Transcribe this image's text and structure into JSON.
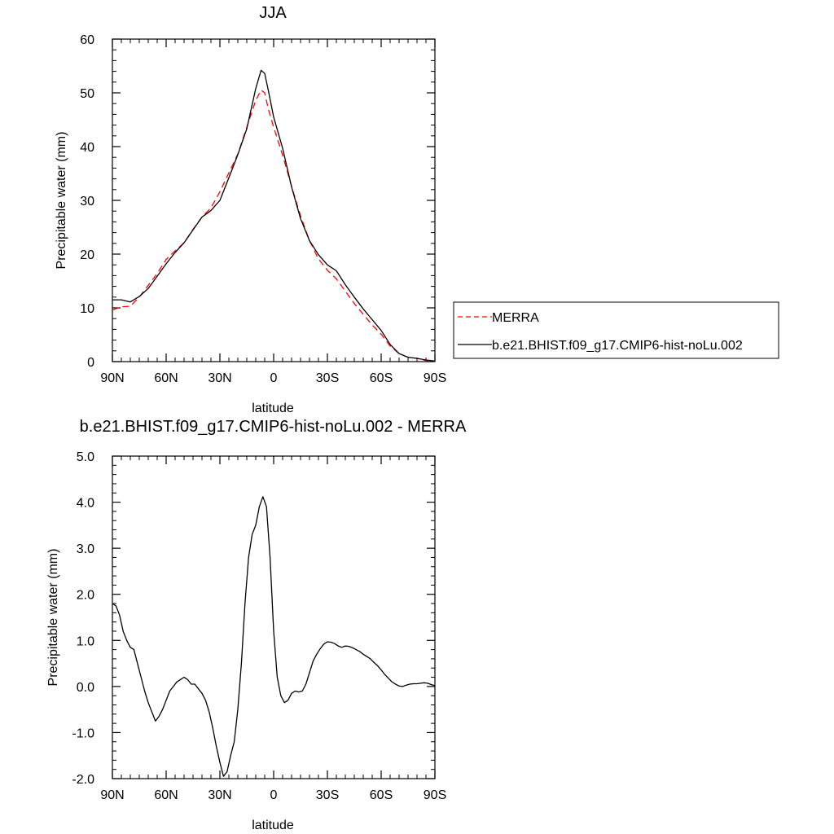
{
  "chart_data": [
    {
      "type": "line",
      "title": "JJA",
      "xlabel": "latitude",
      "ylabel": "Precipitable water (mm)",
      "xlim": [
        90,
        -90
      ],
      "ylim": [
        0,
        60
      ],
      "x_ticks": [
        90,
        60,
        30,
        0,
        -30,
        -60,
        -90
      ],
      "x_tick_labels": [
        "90N",
        "60N",
        "30N",
        "0",
        "30S",
        "60S",
        "90S"
      ],
      "y_ticks": [
        0,
        10,
        20,
        30,
        40,
        50,
        60
      ],
      "y_tick_labels": [
        "0",
        "10",
        "20",
        "30",
        "40",
        "50",
        "60"
      ],
      "legend_position": "right",
      "series": [
        {
          "name": "MERRA",
          "color": "#ff0000",
          "style": "dashed",
          "x": [
            90,
            85,
            80,
            75,
            70,
            65,
            60,
            55,
            50,
            45,
            40,
            35,
            30,
            25,
            20,
            15,
            10,
            7,
            5,
            3,
            0,
            -5,
            -10,
            -15,
            -20,
            -25,
            -30,
            -35,
            -40,
            -45,
            -50,
            -55,
            -60,
            -65,
            -70,
            -75,
            -80,
            -85,
            -90
          ],
          "y": [
            9.6,
            10.2,
            10.3,
            12.0,
            14.2,
            16.4,
            19.0,
            20.6,
            22.1,
            24.6,
            26.9,
            28.6,
            31.6,
            35.1,
            38.6,
            43.6,
            48.6,
            50.5,
            50.0,
            47.0,
            43.6,
            38.4,
            32.6,
            27.1,
            22.5,
            19.1,
            17.0,
            15.4,
            13.1,
            10.8,
            8.8,
            6.8,
            5.1,
            2.9,
            1.5,
            0.8,
            0.6,
            0.2,
            0.0
          ]
        },
        {
          "name": "b.e21.BHIST.f09_g17.CMIP6-hist-noLu.002",
          "color": "#000000",
          "style": "solid",
          "x": [
            90,
            85,
            80,
            75,
            70,
            65,
            60,
            55,
            50,
            45,
            40,
            35,
            30,
            25,
            20,
            15,
            10,
            7,
            5,
            3,
            0,
            -5,
            -10,
            -15,
            -20,
            -25,
            -30,
            -35,
            -40,
            -45,
            -50,
            -55,
            -60,
            -65,
            -70,
            -75,
            -80,
            -85,
            -90
          ],
          "y": [
            11.5,
            11.5,
            11.1,
            12.1,
            13.6,
            15.9,
            18.2,
            20.3,
            22.1,
            24.5,
            26.9,
            28.1,
            30.0,
            34.2,
            38.5,
            43.3,
            50.8,
            54.2,
            53.6,
            50.5,
            45.5,
            39.7,
            32.5,
            26.6,
            22.5,
            19.9,
            18.0,
            16.9,
            14.3,
            12.0,
            9.8,
            7.8,
            5.8,
            3.2,
            1.5,
            0.8,
            0.6,
            0.3,
            0.1
          ]
        }
      ]
    },
    {
      "type": "line",
      "title": "b.e21.BHIST.f09_g17.CMIP6-hist-noLu.002 - MERRA",
      "xlabel": "latitude",
      "ylabel": "Precipitable water (mm)",
      "xlim": [
        90,
        -90
      ],
      "ylim": [
        -2.0,
        5.0
      ],
      "x_ticks": [
        90,
        60,
        30,
        0,
        -30,
        -60,
        -90
      ],
      "x_tick_labels": [
        "90N",
        "60N",
        "30N",
        "0",
        "30S",
        "60S",
        "90S"
      ],
      "y_ticks": [
        -2.0,
        -1.0,
        0.0,
        1.0,
        2.0,
        3.0,
        4.0,
        5.0
      ],
      "y_tick_labels": [
        "-2.0",
        "-1.0",
        "0.0",
        "1.0",
        "2.0",
        "3.0",
        "4.0",
        "5.0"
      ],
      "series": [
        {
          "color": "#000000",
          "style": "solid",
          "x": [
            90,
            88,
            86,
            84,
            82,
            80,
            78,
            76,
            74,
            72,
            70,
            68,
            66,
            64,
            62,
            60,
            58,
            56,
            54,
            52,
            50,
            48,
            46,
            44,
            42,
            40,
            38,
            36,
            34,
            32,
            30,
            28,
            26,
            24,
            22,
            20,
            18,
            16,
            14,
            12,
            10,
            8,
            6,
            4,
            2,
            0,
            -2,
            -4,
            -6,
            -8,
            -10,
            -12,
            -14,
            -16,
            -18,
            -20,
            -22,
            -24,
            -26,
            -28,
            -30,
            -32,
            -34,
            -36,
            -38,
            -40,
            -42,
            -44,
            -46,
            -48,
            -50,
            -52,
            -54,
            -56,
            -58,
            -60,
            -62,
            -64,
            -66,
            -68,
            -70,
            -72,
            -74,
            -76,
            -78,
            -80,
            -82,
            -84,
            -86,
            -88,
            -90
          ],
          "y": [
            1.8,
            1.75,
            1.55,
            1.2,
            1.0,
            0.85,
            0.8,
            0.5,
            0.2,
            -0.1,
            -0.35,
            -0.55,
            -0.75,
            -0.65,
            -0.5,
            -0.3,
            -0.1,
            0.0,
            0.1,
            0.15,
            0.2,
            0.15,
            0.05,
            0.05,
            -0.05,
            -0.15,
            -0.3,
            -0.55,
            -0.9,
            -1.3,
            -1.65,
            -1.95,
            -1.85,
            -1.5,
            -1.2,
            -0.5,
            0.5,
            1.8,
            2.8,
            3.3,
            3.5,
            3.9,
            4.12,
            3.9,
            2.8,
            1.2,
            0.2,
            -0.2,
            -0.35,
            -0.3,
            -0.15,
            -0.1,
            -0.12,
            -0.1,
            0.05,
            0.3,
            0.55,
            0.7,
            0.82,
            0.92,
            0.97,
            0.96,
            0.93,
            0.88,
            0.85,
            0.88,
            0.87,
            0.84,
            0.8,
            0.76,
            0.7,
            0.65,
            0.6,
            0.52,
            0.45,
            0.36,
            0.26,
            0.18,
            0.1,
            0.05,
            0.01,
            0.0,
            0.03,
            0.05,
            0.06,
            0.06,
            0.07,
            0.08,
            0.07,
            0.04,
            0.02
          ]
        }
      ]
    }
  ]
}
